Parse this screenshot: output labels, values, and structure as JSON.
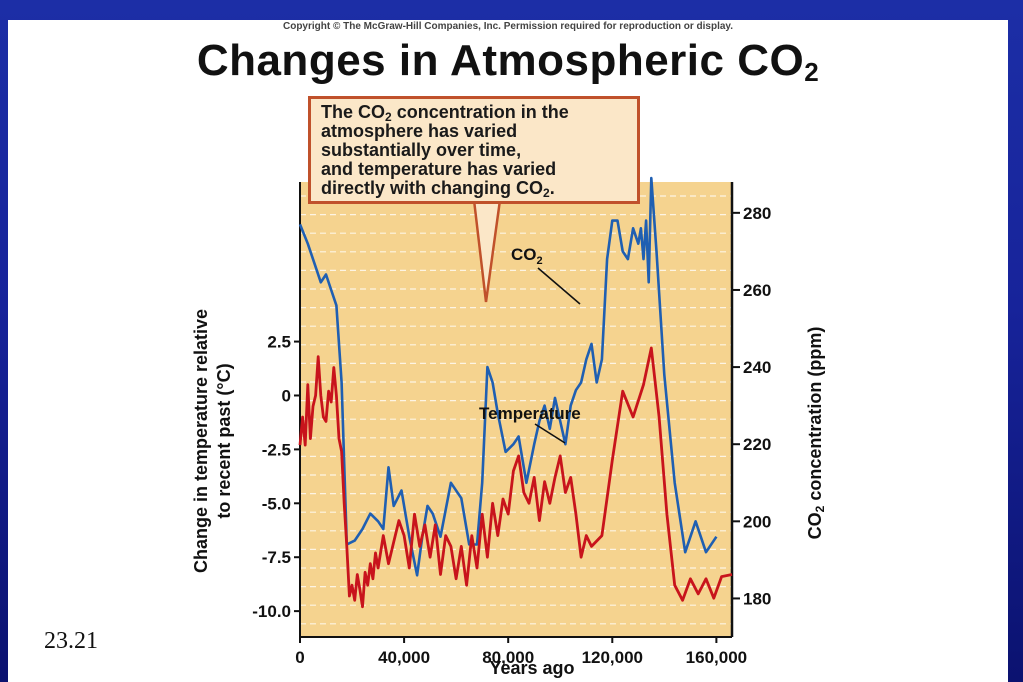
{
  "copyright": "Copyright © The McGraw-Hill Companies, Inc. Permission required for reproduction or display.",
  "title": {
    "main": "Changes in Atmospheric CO",
    "sub": "2"
  },
  "callout": {
    "line1_pre": "The CO",
    "line1_sub": "2",
    "line1_post": " concentration in the",
    "line2": "atmosphere has varied",
    "line3": "substantially over time,",
    "line4": "and temperature has varied",
    "line5_pre": "directly with changing CO",
    "line5_sub": "2",
    "line5_post": "."
  },
  "slide_number": "23.21",
  "colors": {
    "plot_background": "#f5d38f",
    "co2_line": "#1f5fb2",
    "temperature_line": "#c8141c",
    "callout_border": "#c0512b",
    "slide_background": "#1c2ea6"
  },
  "chart_data": {
    "type": "line",
    "xlabel": "Years ago",
    "x_ticks": [
      "0",
      "40,000",
      "80,000",
      "120,000",
      "160,000"
    ],
    "x_tick_values": [
      0,
      40000,
      80000,
      120000,
      160000
    ],
    "xlim": [
      0,
      166000
    ],
    "ylabel_left": "Change in temperature relative to recent past (°C)",
    "ylabel_left_line1": "Change in temperature relative",
    "ylabel_left_line2": "to recent past (°C)",
    "y_left_ticks": [
      "2.5",
      "0",
      "-2.5",
      "-5.0",
      "-7.5",
      "-10.0"
    ],
    "y_left_tick_values": [
      2.5,
      0,
      -2.5,
      -5.0,
      -7.5,
      -10.0
    ],
    "ylim_left": [
      -11.2,
      9.9
    ],
    "ylabel_right_pre": "CO",
    "ylabel_right_sub": "2",
    "ylabel_right_post": " concentration (ppm)",
    "y_right_ticks": [
      "280",
      "260",
      "240",
      "220",
      "200",
      "180"
    ],
    "y_right_tick_values": [
      280,
      260,
      240,
      220,
      200,
      180
    ],
    "ylim_right": [
      170,
      288
    ],
    "grid": "horizontal dashed",
    "series": [
      {
        "name": "CO2",
        "label_pre": "CO",
        "label_sub": "2",
        "axis": "right",
        "x": [
          0,
          3000,
          6000,
          8000,
          10000,
          12000,
          14000,
          16000,
          18000,
          21000,
          24000,
          27000,
          30000,
          32000,
          34000,
          36000,
          39000,
          42000,
          45000,
          47000,
          49000,
          51000,
          54000,
          58000,
          62000,
          65000,
          68000,
          70000,
          72000,
          74000,
          76000,
          79000,
          82000,
          84000,
          87000,
          90000,
          92000,
          94000,
          96000,
          98000,
          100000,
          102000,
          104000,
          106000,
          108000,
          110000,
          112000,
          114000,
          116000,
          118000,
          120000,
          122000,
          124000,
          126000,
          128000,
          130000,
          131000,
          132000,
          133000,
          134000,
          135000,
          137000,
          140000,
          144000,
          148000,
          152000,
          156000,
          160000
        ],
        "values": [
          277,
          272,
          266,
          262,
          264,
          260,
          256,
          236,
          194,
          195,
          198,
          202,
          200,
          198,
          214,
          204,
          208,
          196,
          186,
          196,
          204,
          202,
          196,
          210,
          206,
          194,
          194,
          210,
          240,
          236,
          228,
          218,
          220,
          222,
          210,
          220,
          226,
          230,
          224,
          232,
          226,
          220,
          230,
          234,
          236,
          242,
          246,
          236,
          242,
          268,
          278,
          278,
          270,
          268,
          276,
          272,
          276,
          268,
          278,
          262,
          289,
          270,
          238,
          210,
          192,
          200,
          192,
          196
        ]
      },
      {
        "name": "Temperature",
        "axis": "left",
        "x": [
          0,
          1000,
          2000,
          3000,
          4000,
          5000,
          6000,
          7000,
          8000,
          9000,
          10000,
          11000,
          12000,
          13000,
          14000,
          15000,
          16000,
          17000,
          18000,
          19000,
          20000,
          21000,
          22000,
          23000,
          24000,
          25000,
          26000,
          27000,
          28000,
          29000,
          30000,
          32000,
          34000,
          36000,
          38000,
          40000,
          42000,
          44000,
          46000,
          48000,
          50000,
          52000,
          54000,
          56000,
          58000,
          60000,
          62000,
          64000,
          66000,
          68000,
          70000,
          72000,
          74000,
          76000,
          78000,
          80000,
          82000,
          84000,
          86000,
          88000,
          90000,
          92000,
          94000,
          96000,
          98000,
          100000,
          102000,
          104000,
          106000,
          108000,
          110000,
          112000,
          116000,
          120000,
          124000,
          128000,
          132000,
          135000,
          138000,
          141000,
          144000,
          147000,
          150000,
          153000,
          156000,
          159000,
          162000,
          166000
        ],
        "values": [
          -2.3,
          -1.0,
          -2.3,
          0.5,
          -2.0,
          -0.5,
          0.0,
          1.8,
          0.0,
          -1.0,
          -1.2,
          0.2,
          -0.3,
          1.3,
          0.0,
          -2.0,
          -2.6,
          -5.0,
          -7.0,
          -9.3,
          -8.8,
          -9.5,
          -8.3,
          -9.0,
          -9.8,
          -8.2,
          -8.8,
          -7.8,
          -8.5,
          -7.3,
          -8.0,
          -6.5,
          -7.8,
          -6.8,
          -5.8,
          -6.5,
          -8.0,
          -5.5,
          -7.0,
          -6.0,
          -7.5,
          -6.0,
          -8.3,
          -6.5,
          -7.0,
          -8.5,
          -7.0,
          -8.8,
          -6.5,
          -8.0,
          -5.5,
          -7.5,
          -5.0,
          -6.5,
          -4.8,
          -5.5,
          -3.5,
          -2.8,
          -4.5,
          -5.0,
          -3.8,
          -5.8,
          -4.0,
          -5.0,
          -3.8,
          -2.8,
          -4.5,
          -3.8,
          -5.5,
          -7.5,
          -6.5,
          -7.0,
          -6.5,
          -3.0,
          0.2,
          -1.0,
          0.5,
          2.2,
          -1.0,
          -5.5,
          -8.8,
          -9.5,
          -8.5,
          -9.2,
          -8.5,
          -9.4,
          -8.4,
          -8.3
        ]
      }
    ],
    "annotations": [
      "Temperature"
    ]
  }
}
